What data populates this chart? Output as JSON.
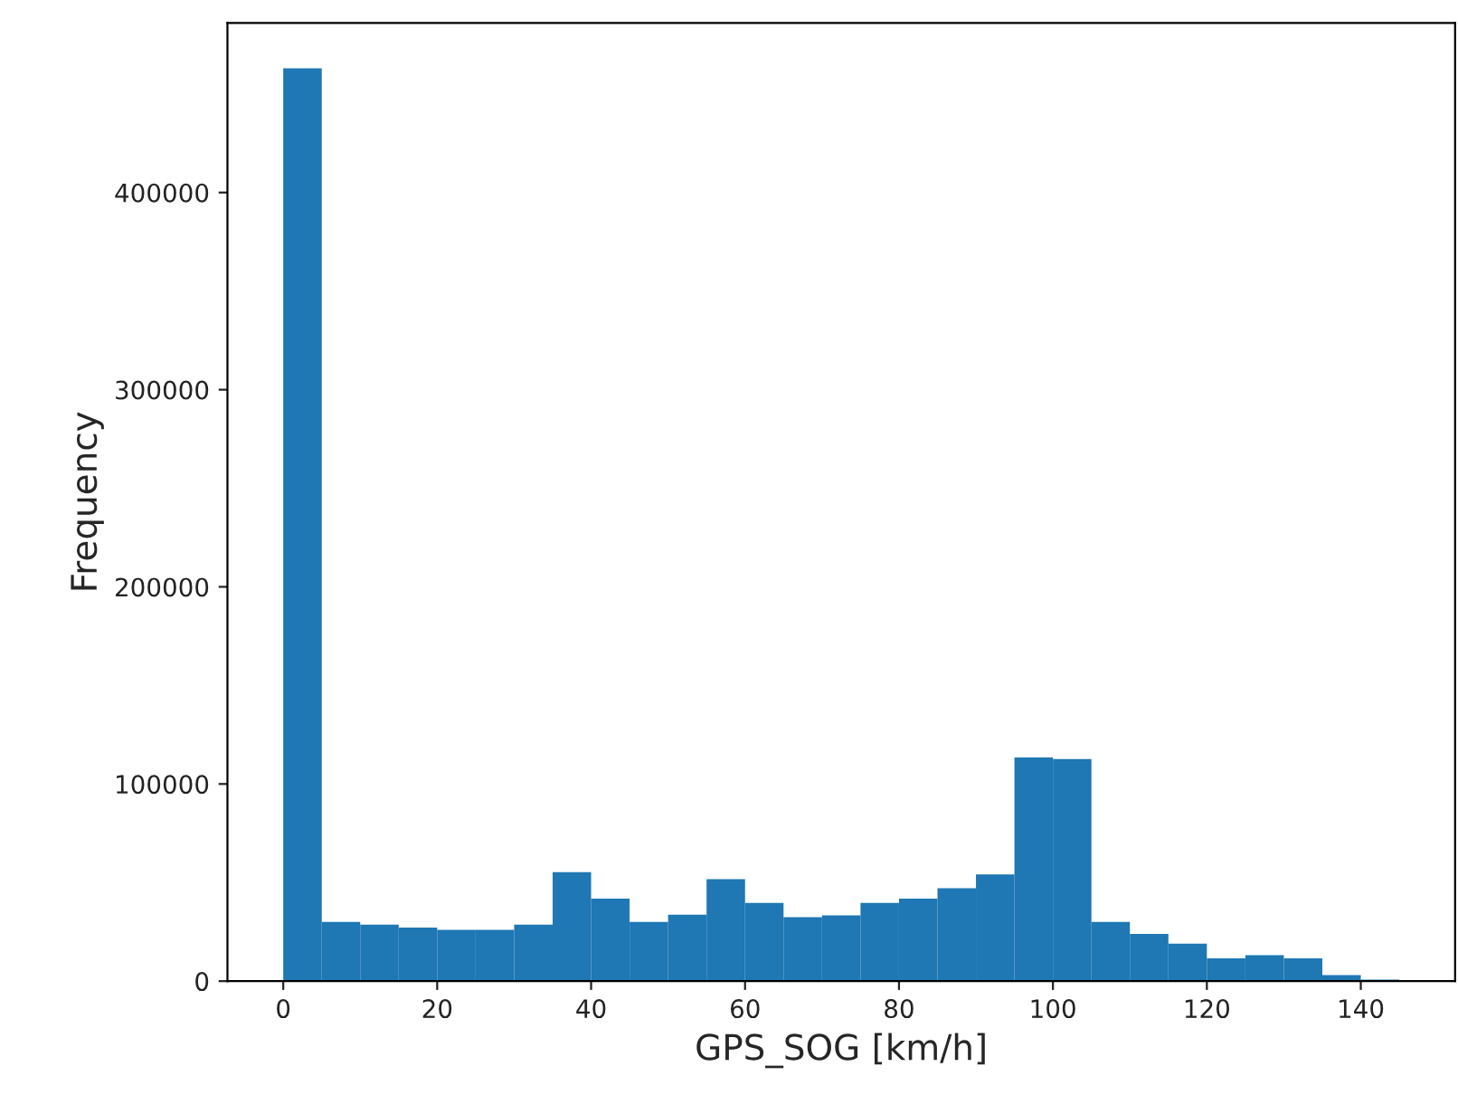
{
  "chart_data": {
    "type": "histogram",
    "xlabel": "GPS_SOG [km/h]",
    "ylabel": "Frequency",
    "color": "#1f77b4",
    "bins": [
      0,
      5,
      10,
      15,
      20,
      25,
      30,
      35,
      40,
      45,
      50,
      55,
      60,
      65,
      70,
      75,
      80,
      85,
      90,
      95,
      100,
      105,
      110,
      115,
      120,
      125,
      130,
      135,
      140,
      145
    ],
    "values": [
      463000,
      30000,
      28700,
      27200,
      26000,
      26000,
      28700,
      55300,
      41900,
      30000,
      33700,
      51700,
      39700,
      32400,
      33400,
      39700,
      41900,
      47100,
      54100,
      113500,
      112600,
      30000,
      23900,
      19000,
      11600,
      13100,
      11600,
      3000,
      800
    ],
    "xlim": [
      -7.25,
      152.25
    ],
    "xticks": [
      0,
      20,
      40,
      60,
      80,
      100,
      120,
      140
    ],
    "ylim": [
      0,
      486000
    ],
    "yticks": [
      0,
      100000,
      200000,
      300000,
      400000
    ],
    "grid": false
  }
}
